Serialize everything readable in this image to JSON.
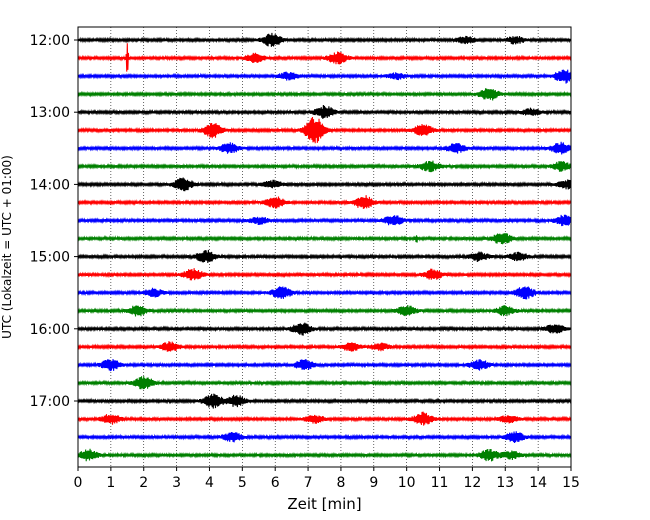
{
  "chart_data": {
    "type": "line",
    "title": "",
    "xlabel": "Zeit  [min]",
    "ylabel": "UTC (Lokalzeit = UTC + 01:00)",
    "xlim": [
      0,
      15
    ],
    "x_ticks": [
      0,
      1,
      2,
      3,
      4,
      5,
      6,
      7,
      8,
      9,
      10,
      11,
      12,
      13,
      14,
      15
    ],
    "grid": "vertical dotted",
    "legend": "none",
    "colors": [
      "#000000",
      "#ff0000",
      "#0000ff",
      "#008000"
    ],
    "traces_per_hour": 4,
    "trace_minutes": 15,
    "y_ticks": [
      "12:00",
      "13:00",
      "14:00",
      "15:00",
      "16:00",
      "17:00"
    ],
    "traces": [
      {
        "start": "12:00",
        "color": "#000000",
        "events": [
          {
            "t": 5.9,
            "a": 1.2
          },
          {
            "t": 11.8,
            "a": 0.6
          },
          {
            "t": 13.3,
            "a": 0.6
          }
        ]
      },
      {
        "start": "12:15",
        "color": "#ff0000",
        "events": [
          {
            "t": 1.5,
            "a": 4.5,
            "spike": true
          },
          {
            "t": 5.4,
            "a": 0.8
          },
          {
            "t": 7.9,
            "a": 1.0
          }
        ]
      },
      {
        "start": "12:30",
        "color": "#0000ff",
        "events": [
          {
            "t": 6.4,
            "a": 0.7
          },
          {
            "t": 9.7,
            "a": 0.5
          },
          {
            "t": 14.8,
            "a": 1.2
          }
        ]
      },
      {
        "start": "12:45",
        "color": "#008000",
        "events": [
          {
            "t": 12.5,
            "a": 1.1
          }
        ]
      },
      {
        "start": "13:00",
        "color": "#000000",
        "events": [
          {
            "t": 7.5,
            "a": 1.1
          },
          {
            "t": 13.8,
            "a": 0.6
          }
        ]
      },
      {
        "start": "13:15",
        "color": "#ff0000",
        "events": [
          {
            "t": 4.1,
            "a": 1.3
          },
          {
            "t": 7.2,
            "a": 2.4
          },
          {
            "t": 10.5,
            "a": 1.0
          }
        ]
      },
      {
        "start": "13:30",
        "color": "#0000ff",
        "events": [
          {
            "t": 4.6,
            "a": 0.9
          },
          {
            "t": 11.5,
            "a": 0.8
          },
          {
            "t": 14.7,
            "a": 1.0
          }
        ]
      },
      {
        "start": "13:45",
        "color": "#008000",
        "events": [
          {
            "t": 10.7,
            "a": 0.9
          },
          {
            "t": 14.7,
            "a": 0.8
          }
        ]
      },
      {
        "start": "14:00",
        "color": "#000000",
        "events": [
          {
            "t": 3.2,
            "a": 1.1
          },
          {
            "t": 5.9,
            "a": 0.7
          },
          {
            "t": 14.9,
            "a": 0.8
          }
        ]
      },
      {
        "start": "14:15",
        "color": "#ff0000",
        "events": [
          {
            "t": 6.0,
            "a": 1.0
          },
          {
            "t": 8.7,
            "a": 1.2
          }
        ]
      },
      {
        "start": "14:30",
        "color": "#0000ff",
        "events": [
          {
            "t": 5.5,
            "a": 0.6
          },
          {
            "t": 9.6,
            "a": 0.9
          },
          {
            "t": 14.8,
            "a": 0.9
          }
        ]
      },
      {
        "start": "14:45",
        "color": "#008000",
        "events": [
          {
            "t": 10.3,
            "a": 1.2,
            "spike": true
          },
          {
            "t": 12.9,
            "a": 1.0
          }
        ]
      },
      {
        "start": "15:00",
        "color": "#000000",
        "events": [
          {
            "t": 3.9,
            "a": 1.1
          },
          {
            "t": 12.2,
            "a": 0.8
          },
          {
            "t": 13.4,
            "a": 0.7
          }
        ]
      },
      {
        "start": "15:15",
        "color": "#ff0000",
        "events": [
          {
            "t": 3.5,
            "a": 1.0
          },
          {
            "t": 10.8,
            "a": 0.9
          }
        ]
      },
      {
        "start": "15:30",
        "color": "#0000ff",
        "events": [
          {
            "t": 2.3,
            "a": 0.7
          },
          {
            "t": 6.2,
            "a": 1.1
          },
          {
            "t": 13.6,
            "a": 1.1
          }
        ]
      },
      {
        "start": "15:45",
        "color": "#008000",
        "events": [
          {
            "t": 1.8,
            "a": 0.9
          },
          {
            "t": 10.0,
            "a": 0.9
          },
          {
            "t": 13.0,
            "a": 0.8
          }
        ]
      },
      {
        "start": "16:00",
        "color": "#000000",
        "events": [
          {
            "t": 6.8,
            "a": 1.1
          },
          {
            "t": 14.5,
            "a": 0.8
          }
        ]
      },
      {
        "start": "16:15",
        "color": "#ff0000",
        "events": [
          {
            "t": 2.8,
            "a": 0.9
          },
          {
            "t": 8.3,
            "a": 0.7
          },
          {
            "t": 9.2,
            "a": 0.6
          }
        ]
      },
      {
        "start": "16:30",
        "color": "#0000ff",
        "events": [
          {
            "t": 1.0,
            "a": 1.0
          },
          {
            "t": 6.9,
            "a": 0.9
          },
          {
            "t": 12.2,
            "a": 0.9
          }
        ]
      },
      {
        "start": "16:45",
        "color": "#008000",
        "events": [
          {
            "t": 2.0,
            "a": 1.1
          }
        ]
      },
      {
        "start": "17:00",
        "color": "#000000",
        "events": [
          {
            "t": 4.1,
            "a": 1.2
          },
          {
            "t": 4.8,
            "a": 1.0
          }
        ]
      },
      {
        "start": "17:15",
        "color": "#ff0000",
        "events": [
          {
            "t": 1.0,
            "a": 0.9
          },
          {
            "t": 7.2,
            "a": 0.7
          },
          {
            "t": 10.5,
            "a": 1.1
          },
          {
            "t": 13.1,
            "a": 0.6
          }
        ]
      },
      {
        "start": "17:30",
        "color": "#0000ff",
        "events": [
          {
            "t": 4.7,
            "a": 0.8
          },
          {
            "t": 13.3,
            "a": 0.9
          }
        ]
      },
      {
        "start": "17:45",
        "color": "#008000",
        "events": [
          {
            "t": 0.3,
            "a": 1.0
          },
          {
            "t": 12.5,
            "a": 1.0
          },
          {
            "t": 13.2,
            "a": 0.7
          }
        ]
      }
    ]
  }
}
